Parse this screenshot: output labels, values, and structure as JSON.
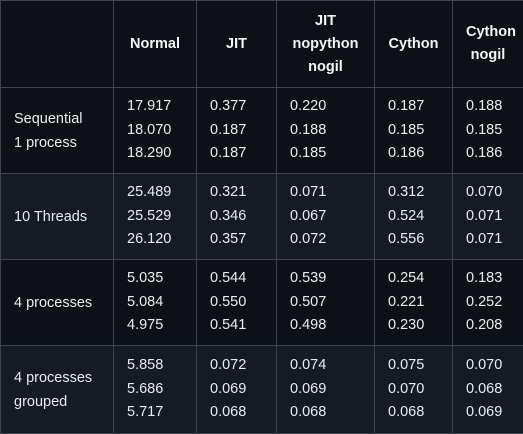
{
  "table": {
    "columns": [
      "",
      "Normal",
      "JIT",
      "JIT\nnopython\nnogil",
      "Cython",
      "Cython\nnogil"
    ],
    "rows": [
      {
        "label": "Sequential\n1 process",
        "values": [
          [
            "17.917",
            "18.070",
            "18.290"
          ],
          [
            "0.377",
            "0.187",
            "0.187"
          ],
          [
            "0.220",
            "0.188",
            "0.185"
          ],
          [
            "0.187",
            "0.185",
            "0.186"
          ],
          [
            "0.188",
            "0.185",
            "0.186"
          ]
        ]
      },
      {
        "label": "10 Threads",
        "values": [
          [
            "25.489",
            "25.529",
            "26.120"
          ],
          [
            "0.321",
            "0.346",
            "0.357"
          ],
          [
            "0.071",
            "0.067",
            "0.072"
          ],
          [
            "0.312",
            "0.524",
            "0.556"
          ],
          [
            "0.070",
            "0.071",
            "0.071"
          ]
        ]
      },
      {
        "label": "4 processes",
        "values": [
          [
            "5.035",
            "5.084",
            "4.975"
          ],
          [
            "0.544",
            "0.550",
            "0.541"
          ],
          [
            "0.539",
            "0.507",
            "0.498"
          ],
          [
            "0.254",
            "0.221",
            "0.230"
          ],
          [
            "0.183",
            "0.252",
            "0.208"
          ]
        ]
      },
      {
        "label": "4 processes\ngrouped",
        "values": [
          [
            "5.858",
            "5.686",
            "5.717"
          ],
          [
            "0.072",
            "0.069",
            "0.068"
          ],
          [
            "0.074",
            "0.069",
            "0.068"
          ],
          [
            "0.075",
            "0.070",
            "0.068"
          ],
          [
            "0.070",
            "0.068",
            "0.069"
          ]
        ]
      }
    ]
  }
}
